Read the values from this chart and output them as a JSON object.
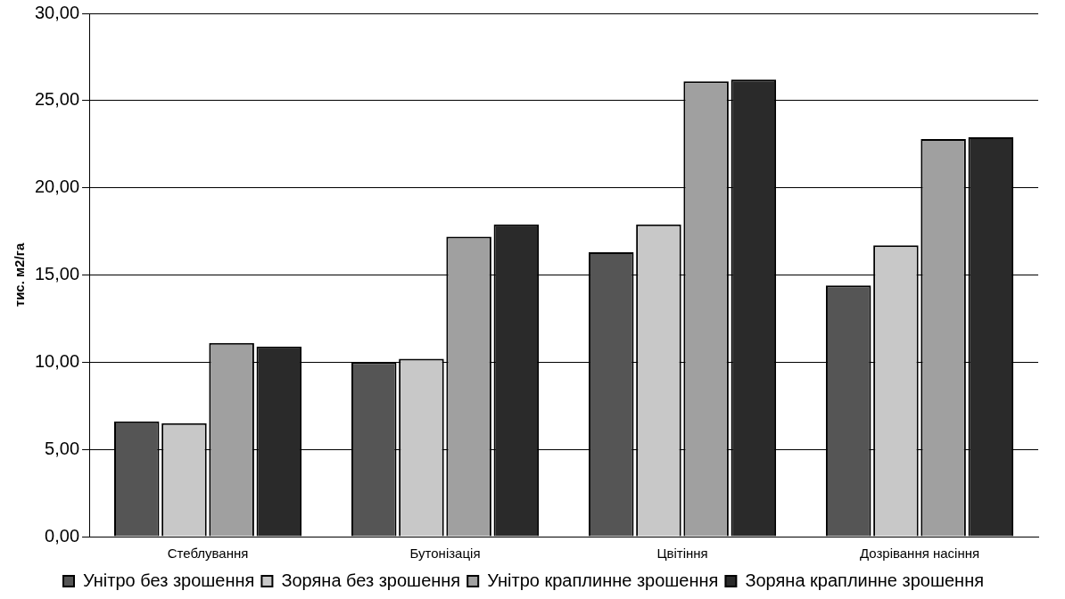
{
  "chart_data": {
    "type": "bar",
    "ylabel": "тис. м2/га",
    "categories": [
      "Стеблування",
      "Бутонізація",
      "Цвітіння",
      "Дозрівання насіння"
    ],
    "series": [
      {
        "name": "Унітро без зрошення",
        "color": "#555555",
        "values": [
          6.6,
          10.0,
          16.3,
          14.4
        ]
      },
      {
        "name": "Зоряна без зрошення",
        "color": "#c8c8c8",
        "values": [
          6.5,
          10.2,
          17.9,
          16.7
        ]
      },
      {
        "name": "Унітро краплинне зрошення",
        "color": "#a0a0a0",
        "values": [
          11.1,
          17.2,
          26.1,
          22.8
        ]
      },
      {
        "name": "Зоряна краплинне зрошення",
        "color": "#2a2a2a",
        "values": [
          10.9,
          17.9,
          26.2,
          22.9
        ]
      }
    ],
    "ylim": [
      0,
      30
    ],
    "yticks": [
      {
        "value": 0,
        "label": "0,00"
      },
      {
        "value": 5,
        "label": "5,00"
      },
      {
        "value": 10,
        "label": "10,00"
      },
      {
        "value": 15,
        "label": "15,00"
      },
      {
        "value": 20,
        "label": "20,00"
      },
      {
        "value": 25,
        "label": "25,00"
      },
      {
        "value": 30,
        "label": "30,00"
      }
    ],
    "grid": "y",
    "legend": "bottom"
  }
}
